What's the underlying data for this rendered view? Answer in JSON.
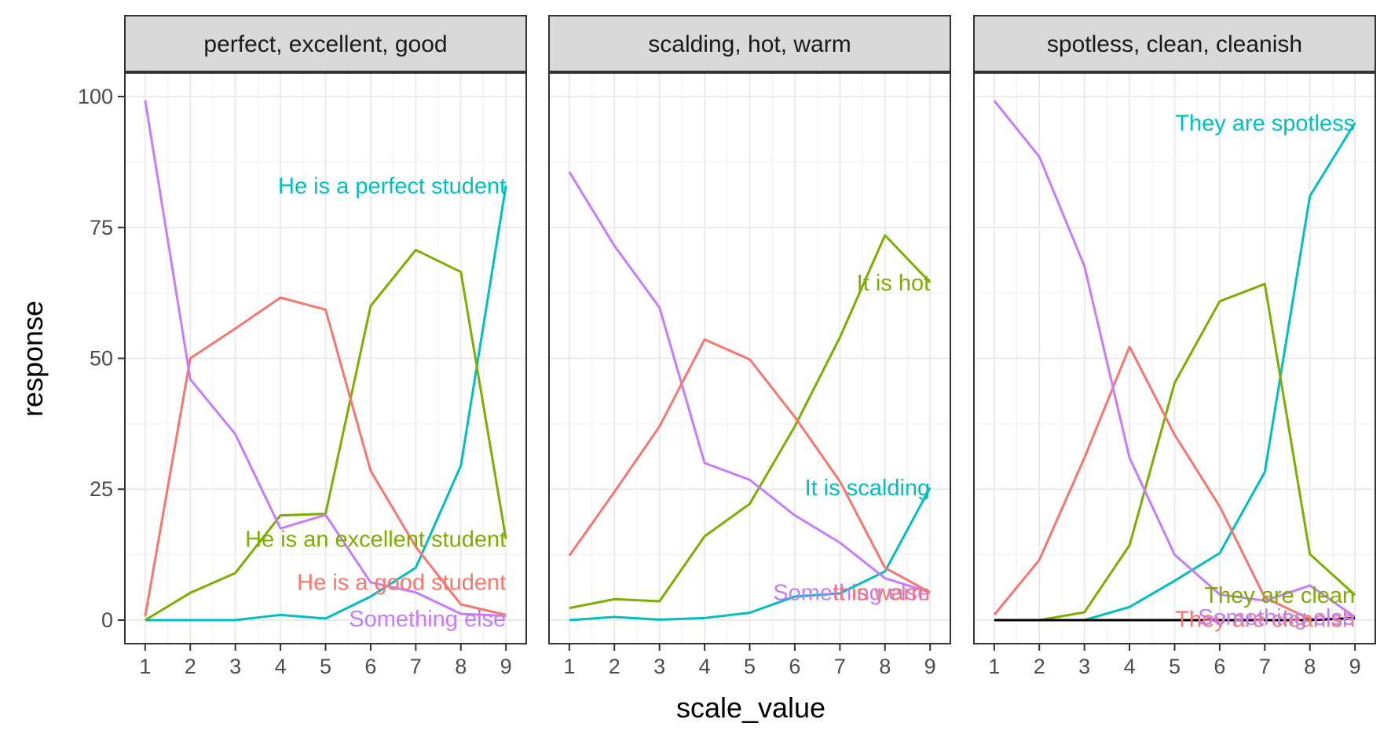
{
  "chart_data": {
    "type": "line",
    "xlabel": "scale_value",
    "ylabel": "response",
    "x_ticks": [
      1,
      2,
      3,
      4,
      5,
      6,
      7,
      8,
      9
    ],
    "y_ticks": [
      0,
      25,
      50,
      75,
      100
    ],
    "xlim": [
      0.55,
      9.45
    ],
    "ylim": [
      -4.5,
      104.5
    ],
    "grid": true,
    "legend": "none",
    "panels": [
      {
        "title": "perfect, excellent, good",
        "series": [
          {
            "label": "He is a perfect student",
            "color": "#00BFC4",
            "label_x": 9,
            "label_y": 83,
            "values": [
              0,
              0,
              0,
              1,
              0.3,
              4.5,
              10,
              29.5,
              83
            ]
          },
          {
            "label": "He is an excellent student",
            "color": "#7CAE00",
            "label_x": 9,
            "label_y": 15.5,
            "values": [
              0,
              5.2,
              9,
              20,
              20.3,
              60,
              70.7,
              66.5,
              15.5
            ]
          },
          {
            "label": "He is a good student",
            "color": "#F8766D",
            "label_x": 9,
            "label_y": 7.3,
            "values": [
              0.7,
              50,
              55.7,
              61.6,
              59.3,
              28.5,
              14,
              3,
              1
            ]
          },
          {
            "label": "Something else",
            "color": "#C77CFF",
            "label_x": 9,
            "label_y": 0.3,
            "values": [
              99.3,
              46,
              35.5,
              17.5,
              20.1,
              7.2,
              5.3,
              1.2,
              0.8
            ]
          }
        ]
      },
      {
        "title": "scalding, hot, warm",
        "series": [
          {
            "label": "It is hot",
            "color": "#7CAE00",
            "label_x": 9,
            "label_y": 64.5,
            "values": [
              2.3,
              4,
              3.6,
              16,
              22.2,
              37,
              54,
              73.5,
              64.5
            ]
          },
          {
            "label": "It is scalding",
            "color": "#00BFC4",
            "label_x": 9,
            "label_y": 25.3,
            "values": [
              0,
              0.6,
              0.1,
              0.4,
              1.4,
              4.5,
              5.1,
              9.3,
              25.3
            ]
          },
          {
            "label": "Something else",
            "color": "#C77CFF",
            "label_x": 9,
            "label_y": 5.3,
            "values": [
              85.6,
              71.5,
              59.7,
              30,
              26.8,
              20,
              14.8,
              8,
              5.3
            ]
          },
          {
            "label": "It is warm",
            "color": "#F8766D",
            "label_x": 9,
            "label_y": 5.3,
            "values": [
              12.3,
              24.5,
              37,
              53.6,
              49.8,
              38.8,
              26.5,
              10,
              5.3
            ]
          }
        ]
      },
      {
        "title": "spotless, clean, cleanish",
        "series": [
          {
            "label": "They are spotless",
            "color": "#00BFC4",
            "label_x": 9,
            "label_y": 95,
            "values": [
              0,
              0,
              0,
              2.5,
              7.5,
              12.8,
              28.3,
              81,
              95
            ]
          },
          {
            "label": "They are clean",
            "color": "#7CAE00",
            "label_x": 9,
            "label_y": 4.8,
            "values": [
              0,
              0,
              1.5,
              14.3,
              45.3,
              60.9,
              64.2,
              12.6,
              4.8
            ]
          },
          {
            "label": "They are cleanish",
            "color": "#F8766D",
            "label_x": 9,
            "label_y": 0.2,
            "values": [
              1,
              11.5,
              31,
              52.2,
              35.4,
              21.7,
              4.3,
              0.2,
              0.2
            ]
          },
          {
            "label": "Something else",
            "color": "#C77CFF",
            "label_x": 9,
            "label_y": 0.6,
            "values": [
              99.2,
              88.5,
              67.6,
              31,
              12.5,
              4.9,
              3.7,
              6.6,
              0.6
            ]
          },
          {
            "label": "",
            "color": "#000000",
            "label_x": 9,
            "label_y": 0.4,
            "values": [
              0,
              0,
              0,
              0,
              0,
              0,
              0,
              0,
              0.4
            ]
          }
        ]
      }
    ]
  }
}
